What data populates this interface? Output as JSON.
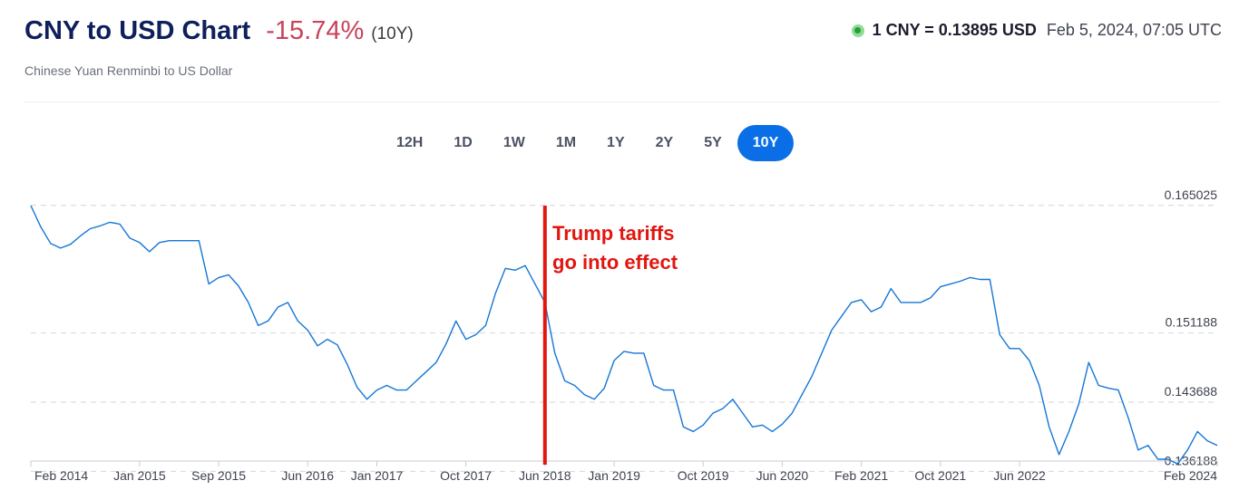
{
  "header": {
    "title": "CNY to USD Chart",
    "change": "-15.74%",
    "period": "(10Y)",
    "subtitle": "Chinese Yuan Renminbi to US Dollar"
  },
  "rate": {
    "value": "1 CNY = 0.13895 USD",
    "timestamp": "Feb 5, 2024, 07:05 UTC",
    "status_color": "#2a9d3b"
  },
  "tabs": [
    {
      "label": "12H",
      "active": false
    },
    {
      "label": "1D",
      "active": false
    },
    {
      "label": "1W",
      "active": false
    },
    {
      "label": "1M",
      "active": false
    },
    {
      "label": "1Y",
      "active": false
    },
    {
      "label": "2Y",
      "active": false
    },
    {
      "label": "5Y",
      "active": false
    },
    {
      "label": "10Y",
      "active": true
    }
  ],
  "annotation": {
    "line1": "Trump tariffs",
    "line2": "go into effect",
    "color": "#e3150f",
    "date": "2018-06"
  },
  "chart_data": {
    "type": "line",
    "title": "",
    "xlabel": "",
    "ylabel": "",
    "ylim": [
      0.1373,
      0.1652
    ],
    "x_ticks": [
      "Feb 2014",
      "Jan 2015",
      "Sep 2015",
      "Jun 2016",
      "Jan 2017",
      "Oct 2017",
      "Jun 2018",
      "Jan 2019",
      "Oct 2019",
      "Jun 2020",
      "Feb 2021",
      "Oct 2021",
      "Jun 2022",
      "Feb 2024"
    ],
    "y_ticks": [
      "0.165025",
      "0.151188",
      "0.143688",
      "0.136188"
    ],
    "grid": true,
    "line_color": "#1576d6",
    "series": [
      {
        "points": [
          [
            "2014-02",
            0.165
          ],
          [
            "2014-03",
            0.1627
          ],
          [
            "2014-04",
            0.1609
          ],
          [
            "2014-05",
            0.1604
          ],
          [
            "2014-06",
            0.1608
          ],
          [
            "2014-07",
            0.1617
          ],
          [
            "2014-08",
            0.1625
          ],
          [
            "2014-09",
            0.1628
          ],
          [
            "2014-10",
            0.1632
          ],
          [
            "2014-11",
            0.163
          ],
          [
            "2014-12",
            0.1615
          ],
          [
            "2015-01",
            0.161
          ],
          [
            "2015-02",
            0.16
          ],
          [
            "2015-03",
            0.161
          ],
          [
            "2015-04",
            0.1612
          ],
          [
            "2015-05",
            0.1612
          ],
          [
            "2015-06",
            0.1612
          ],
          [
            "2015-07",
            0.1612
          ],
          [
            "2015-08",
            0.1565
          ],
          [
            "2015-09",
            0.1572
          ],
          [
            "2015-10",
            0.1575
          ],
          [
            "2015-11",
            0.1563
          ],
          [
            "2015-12",
            0.1545
          ],
          [
            "2016-01",
            0.152
          ],
          [
            "2016-02",
            0.1525
          ],
          [
            "2016-03",
            0.154
          ],
          [
            "2016-04",
            0.1545
          ],
          [
            "2016-05",
            0.1525
          ],
          [
            "2016-06",
            0.1515
          ],
          [
            "2016-07",
            0.1498
          ],
          [
            "2016-08",
            0.1505
          ],
          [
            "2016-09",
            0.1499
          ],
          [
            "2016-10",
            0.1478
          ],
          [
            "2016-11",
            0.1453
          ],
          [
            "2016-12",
            0.144
          ],
          [
            "2017-01",
            0.145
          ],
          [
            "2017-02",
            0.1455
          ],
          [
            "2017-03",
            0.145
          ],
          [
            "2017-04",
            0.145
          ],
          [
            "2017-05",
            0.146
          ],
          [
            "2017-06",
            0.147
          ],
          [
            "2017-07",
            0.148
          ],
          [
            "2017-08",
            0.15
          ],
          [
            "2017-09",
            0.1525
          ],
          [
            "2017-10",
            0.1505
          ],
          [
            "2017-11",
            0.151
          ],
          [
            "2017-12",
            0.152
          ],
          [
            "2018-01",
            0.1555
          ],
          [
            "2018-02",
            0.1582
          ],
          [
            "2018-03",
            0.158
          ],
          [
            "2018-04",
            0.1585
          ],
          [
            "2018-05",
            0.1565
          ],
          [
            "2018-06",
            0.1545
          ],
          [
            "2018-07",
            0.149
          ],
          [
            "2018-08",
            0.146
          ],
          [
            "2018-09",
            0.1455
          ],
          [
            "2018-10",
            0.1445
          ],
          [
            "2018-11",
            0.144
          ],
          [
            "2018-12",
            0.1452
          ],
          [
            "2019-01",
            0.1482
          ],
          [
            "2019-02",
            0.1492
          ],
          [
            "2019-03",
            0.149
          ],
          [
            "2019-04",
            0.149
          ],
          [
            "2019-05",
            0.1455
          ],
          [
            "2019-06",
            0.145
          ],
          [
            "2019-07",
            0.145
          ],
          [
            "2019-08",
            0.141
          ],
          [
            "2019-09",
            0.1405
          ],
          [
            "2019-10",
            0.1412
          ],
          [
            "2019-11",
            0.1425
          ],
          [
            "2019-12",
            0.143
          ],
          [
            "2020-01",
            0.144
          ],
          [
            "2020-02",
            0.1425
          ],
          [
            "2020-03",
            0.141
          ],
          [
            "2020-04",
            0.1412
          ],
          [
            "2020-05",
            0.1405
          ],
          [
            "2020-06",
            0.1413
          ],
          [
            "2020-07",
            0.1425
          ],
          [
            "2020-08",
            0.1445
          ],
          [
            "2020-09",
            0.1465
          ],
          [
            "2020-10",
            0.149
          ],
          [
            "2020-11",
            0.1515
          ],
          [
            "2020-12",
            0.153
          ],
          [
            "2021-01",
            0.1545
          ],
          [
            "2021-02",
            0.1548
          ],
          [
            "2021-03",
            0.1535
          ],
          [
            "2021-04",
            0.154
          ],
          [
            "2021-05",
            0.156
          ],
          [
            "2021-06",
            0.1545
          ],
          [
            "2021-07",
            0.1545
          ],
          [
            "2021-08",
            0.1545
          ],
          [
            "2021-09",
            0.155
          ],
          [
            "2021-10",
            0.1562
          ],
          [
            "2021-11",
            0.1565
          ],
          [
            "2021-12",
            0.1568
          ],
          [
            "2022-01",
            0.1572
          ],
          [
            "2022-02",
            0.157
          ],
          [
            "2022-03",
            0.157
          ],
          [
            "2022-04",
            0.151
          ],
          [
            "2022-05",
            0.1495
          ],
          [
            "2022-06",
            0.1495
          ],
          [
            "2022-07",
            0.1482
          ],
          [
            "2022-08",
            0.1455
          ],
          [
            "2022-09",
            0.141
          ],
          [
            "2022-10",
            0.138
          ],
          [
            "2022-11",
            0.1405
          ],
          [
            "2022-12",
            0.1435
          ],
          [
            "2023-01",
            0.148
          ],
          [
            "2023-02",
            0.1455
          ],
          [
            "2023-03",
            0.1452
          ],
          [
            "2023-04",
            0.145
          ],
          [
            "2023-05",
            0.142
          ],
          [
            "2023-06",
            0.1385
          ],
          [
            "2023-07",
            0.139
          ],
          [
            "2023-08",
            0.1375
          ],
          [
            "2023-09",
            0.1375
          ],
          [
            "2023-10",
            0.137
          ],
          [
            "2023-11",
            0.1385
          ],
          [
            "2023-12",
            0.1405
          ],
          [
            "2024-01",
            0.1395
          ],
          [
            "2024-02",
            0.139
          ]
        ]
      }
    ]
  }
}
